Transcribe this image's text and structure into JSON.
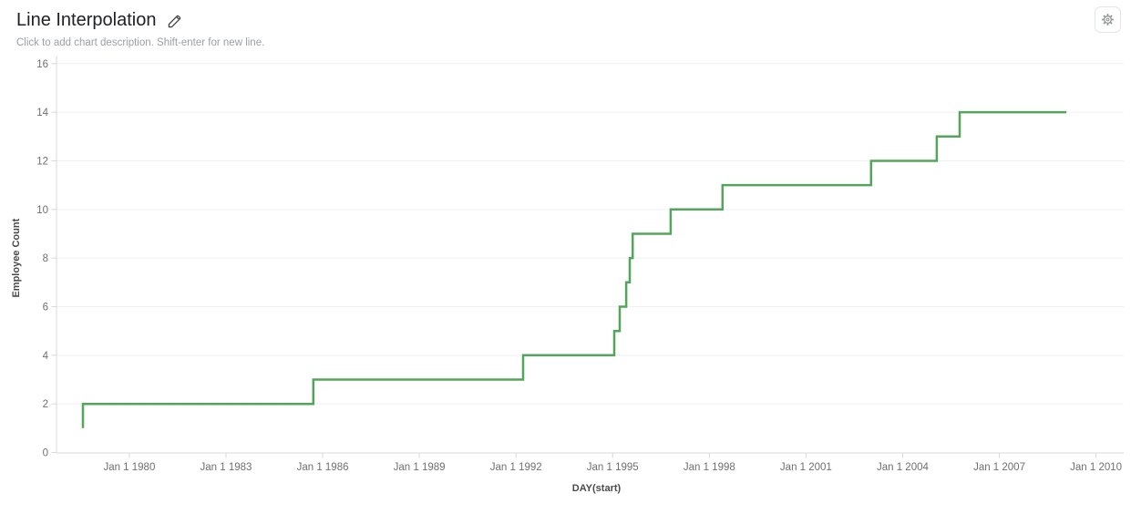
{
  "header": {
    "title": "Line Interpolation",
    "subtitle": "Click to add chart description. Shift-enter for new line.",
    "edit_icon": "pencil-icon"
  },
  "toolbar": {
    "settings_icon": "gear-icon"
  },
  "chart_data": {
    "type": "line",
    "interpolation": "step-after",
    "title": "Line Interpolation",
    "xlabel": "DAY(start)",
    "ylabel": "Employee Count",
    "x_domain": [
      1977.74,
      2010.86
    ],
    "y_domain": [
      0,
      16
    ],
    "x_ticks": [
      {
        "value": 1980,
        "label": "Jan 1 1980"
      },
      {
        "value": 1983,
        "label": "Jan 1 1983"
      },
      {
        "value": 1986,
        "label": "Jan 1 1986"
      },
      {
        "value": 1989,
        "label": "Jan 1 1989"
      },
      {
        "value": 1992,
        "label": "Jan 1 1992"
      },
      {
        "value": 1995,
        "label": "Jan 1 1995"
      },
      {
        "value": 1998,
        "label": "Jan 1 1998"
      },
      {
        "value": 2001,
        "label": "Jan 1 2001"
      },
      {
        "value": 2004,
        "label": "Jan 1 2004"
      },
      {
        "value": 2007,
        "label": "Jan 1 2007"
      },
      {
        "value": 2010,
        "label": "Jan 1 2010"
      }
    ],
    "y_ticks": [
      0,
      2,
      4,
      6,
      8,
      10,
      12,
      14,
      16
    ],
    "grid": "horizontal",
    "legend": "none",
    "colors": {
      "line": "#54a55c",
      "grid": "#f0f0f0",
      "axis": "#d9d9d9",
      "tick_text": "#6f6f6f",
      "axis_title_text": "#4a4a4a"
    },
    "series": [
      {
        "name": "Employee Count",
        "points": [
          [
            1978.56,
            1
          ],
          [
            1978.56,
            2
          ],
          [
            1985.71,
            3
          ],
          [
            1992.22,
            4
          ],
          [
            1995.05,
            5
          ],
          [
            1995.22,
            6
          ],
          [
            1995.42,
            7
          ],
          [
            1995.53,
            8
          ],
          [
            1995.62,
            9
          ],
          [
            1996.8,
            10
          ],
          [
            1998.41,
            11
          ],
          [
            2003.02,
            12
          ],
          [
            2005.06,
            13
          ],
          [
            2005.77,
            14
          ],
          [
            2009.08,
            14
          ]
        ]
      }
    ]
  }
}
